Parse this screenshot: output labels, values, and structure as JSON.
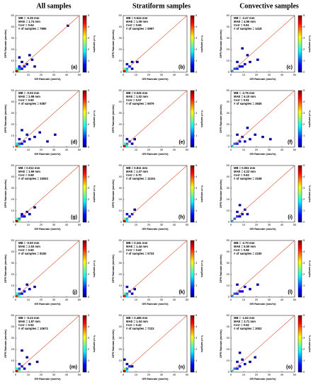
{
  "column_titles": [
    "All samples",
    "Stratiform samples",
    "Convective samples"
  ],
  "axes": {
    "x_label": "GR Rainrate (mm/hr)",
    "y_label": "DPR Rainrate (mm/hr)",
    "colorbar_label": "% of samples",
    "xlim": [
      0,
      50
    ],
    "ylim": [
      0,
      50
    ],
    "xticks": [
      0,
      10,
      20,
      30,
      40,
      50
    ],
    "yticks": [
      0,
      10,
      20,
      30,
      40,
      50
    ],
    "clim": [
      0,
      5
    ],
    "cticks": [
      0,
      1,
      2,
      3,
      4,
      5
    ],
    "bin_width": 2,
    "line_color": "#d9502f"
  },
  "chart_data": [
    {
      "type": "heatmap",
      "label": "(a)",
      "annotations": [
        "MB = -0.35 mm",
        "MAE = 1.74 mm",
        "Corr = 0.64",
        "# of samples = 7865"
      ],
      "cells": [
        [
          0,
          0,
          4.8
        ],
        [
          2,
          0,
          2.5
        ],
        [
          0,
          2,
          2.2
        ],
        [
          2,
          2,
          1.2
        ],
        [
          4,
          2,
          0.6
        ],
        [
          2,
          4,
          0.6
        ],
        [
          6,
          4,
          0.3
        ],
        [
          4,
          8,
          0.2
        ],
        [
          8,
          6,
          0.15
        ],
        [
          12,
          10,
          0.1
        ],
        [
          2,
          12,
          0.1
        ],
        [
          14,
          4,
          0.1
        ],
        [
          10,
          14,
          0.05
        ],
        [
          40,
          40,
          0.05
        ]
      ]
    },
    {
      "type": "heatmap",
      "label": "(b)",
      "annotations": [
        "MB = 0.524 mm",
        "MAE = 1.09 mm",
        "Corr = 0.66",
        "# of samples = 5997"
      ],
      "cells": [
        [
          0,
          0,
          4.5
        ],
        [
          2,
          0,
          2.0
        ],
        [
          0,
          2,
          2.4
        ],
        [
          2,
          2,
          1.5
        ],
        [
          4,
          4,
          0.5
        ],
        [
          2,
          6,
          0.3
        ],
        [
          6,
          2,
          0.2
        ],
        [
          6,
          8,
          0.1
        ],
        [
          10,
          8,
          0.05
        ]
      ]
    },
    {
      "type": "heatmap",
      "label": "(c)",
      "annotations": [
        "MB = -2.47 mm",
        "MAE = 4.96 mm",
        "Corr = 0.61",
        "# of samples = 1418"
      ],
      "cells": [
        [
          0,
          0,
          1.5
        ],
        [
          2,
          2,
          1.0
        ],
        [
          4,
          2,
          0.8
        ],
        [
          6,
          4,
          0.5
        ],
        [
          8,
          4,
          0.4
        ],
        [
          10,
          6,
          0.3
        ],
        [
          4,
          8,
          0.3
        ],
        [
          14,
          8,
          0.2
        ],
        [
          12,
          14,
          0.15
        ],
        [
          20,
          10,
          0.1
        ],
        [
          8,
          20,
          0.1
        ]
      ]
    },
    {
      "type": "heatmap",
      "label": "(d)",
      "annotations": [
        "MB = -0.93 mm",
        "MAE = 2.98 mm",
        "Corr = 0.60",
        "# of samples = 9387"
      ],
      "cells": [
        [
          0,
          0,
          4.0
        ],
        [
          2,
          0,
          2.2
        ],
        [
          0,
          2,
          1.8
        ],
        [
          2,
          2,
          1.0
        ],
        [
          4,
          2,
          0.6
        ],
        [
          6,
          4,
          0.4
        ],
        [
          2,
          6,
          0.3
        ],
        [
          10,
          6,
          0.2
        ],
        [
          8,
          10,
          0.2
        ],
        [
          14,
          8,
          0.1
        ],
        [
          18,
          12,
          0.1
        ],
        [
          4,
          14,
          0.1
        ],
        [
          24,
          4,
          0.05
        ],
        [
          30,
          10,
          0.05
        ]
      ]
    },
    {
      "type": "heatmap",
      "label": "(e)",
      "annotations": [
        "MB = 0.026 mm",
        "MAE = 1.02 mm",
        "Corr = 0.57",
        "# of samples = 6979"
      ],
      "cells": [
        [
          0,
          0,
          4.6
        ],
        [
          2,
          0,
          2.0
        ],
        [
          0,
          2,
          2.2
        ],
        [
          2,
          2,
          1.3
        ],
        [
          4,
          4,
          0.5
        ],
        [
          6,
          2,
          0.2
        ],
        [
          2,
          6,
          0.2
        ],
        [
          8,
          6,
          0.1
        ]
      ]
    },
    {
      "type": "heatmap",
      "label": "(f)",
      "annotations": [
        "MB = -2.76 mm",
        "MAE = 6.10 mm",
        "Corr = 0.51",
        "# of samples = 3845"
      ],
      "cells": [
        [
          0,
          0,
          1.8
        ],
        [
          2,
          2,
          1.1
        ],
        [
          4,
          2,
          0.8
        ],
        [
          6,
          4,
          0.5
        ],
        [
          10,
          4,
          0.4
        ],
        [
          8,
          8,
          0.3
        ],
        [
          14,
          6,
          0.2
        ],
        [
          4,
          10,
          0.2
        ],
        [
          18,
          10,
          0.15
        ],
        [
          24,
          8,
          0.1
        ],
        [
          30,
          6,
          0.05
        ],
        [
          12,
          16,
          0.1
        ]
      ]
    },
    {
      "type": "heatmap",
      "label": "(g)",
      "annotations": [
        "MB = 0.012 mm",
        "MAE = 1.69 mm",
        "Corr = 0.69",
        "# of samples = 15053"
      ],
      "cells": [
        [
          0,
          0,
          4.9
        ],
        [
          2,
          0,
          2.4
        ],
        [
          0,
          2,
          2.3
        ],
        [
          2,
          2,
          1.3
        ],
        [
          4,
          4,
          0.6
        ],
        [
          6,
          4,
          0.3
        ],
        [
          4,
          6,
          0.3
        ],
        [
          8,
          8,
          0.15
        ],
        [
          10,
          6,
          0.1
        ],
        [
          14,
          12,
          0.05
        ]
      ]
    },
    {
      "type": "heatmap",
      "label": "(h)",
      "annotations": [
        "MB = 0.811 mm",
        "MAE = 1.07 mm",
        "Corr = 0.70",
        "# of samples = 11161"
      ],
      "cells": [
        [
          0,
          0,
          4.7
        ],
        [
          2,
          0,
          1.9
        ],
        [
          0,
          2,
          2.5
        ],
        [
          2,
          2,
          1.6
        ],
        [
          4,
          4,
          0.5
        ],
        [
          2,
          6,
          0.3
        ],
        [
          6,
          6,
          0.2
        ],
        [
          8,
          10,
          0.05
        ]
      ]
    },
    {
      "type": "heatmap",
      "label": "(i)",
      "annotations": [
        "MB = 0.061 mm",
        "MAE = 4.22 mm",
        "Corr = 0.63",
        "# of samples = 3168"
      ],
      "cells": [
        [
          0,
          0,
          1.6
        ],
        [
          2,
          2,
          1.1
        ],
        [
          4,
          4,
          0.7
        ],
        [
          6,
          4,
          0.4
        ],
        [
          4,
          8,
          0.3
        ],
        [
          8,
          6,
          0.3
        ],
        [
          10,
          10,
          0.2
        ],
        [
          12,
          6,
          0.1
        ],
        [
          6,
          14,
          0.1
        ]
      ]
    },
    {
      "type": "heatmap",
      "label": "(j)",
      "annotations": [
        "MB = -0.50 mm",
        "MAE = 2.53 mm",
        "Corr = 0.60",
        "# of samples = 8150"
      ],
      "cells": [
        [
          0,
          0,
          4.2
        ],
        [
          2,
          0,
          2.1
        ],
        [
          0,
          2,
          2.0
        ],
        [
          2,
          2,
          1.1
        ],
        [
          4,
          2,
          0.6
        ],
        [
          6,
          4,
          0.4
        ],
        [
          2,
          6,
          0.3
        ],
        [
          10,
          6,
          0.2
        ],
        [
          8,
          10,
          0.1
        ],
        [
          14,
          8,
          0.1
        ]
      ]
    },
    {
      "type": "heatmap",
      "label": "(k)",
      "annotations": [
        "MB = 0.341 mm",
        "MAE = 1.44 mm",
        "Corr = 0.63",
        "# of samples = 5733"
      ],
      "cells": [
        [
          0,
          0,
          4.4
        ],
        [
          2,
          0,
          1.8
        ],
        [
          0,
          2,
          2.2
        ],
        [
          2,
          2,
          1.4
        ],
        [
          4,
          4,
          0.5
        ],
        [
          6,
          2,
          0.3
        ],
        [
          2,
          8,
          0.2
        ],
        [
          8,
          6,
          0.1
        ]
      ]
    },
    {
      "type": "heatmap",
      "label": "(l)",
      "annotations": [
        "MB = -2.70 mm",
        "MAE = 5.50 mm",
        "Corr = 0.56",
        "# of samples = 2230"
      ],
      "cells": [
        [
          0,
          0,
          1.4
        ],
        [
          2,
          2,
          1.0
        ],
        [
          4,
          2,
          0.8
        ],
        [
          6,
          4,
          0.5
        ],
        [
          8,
          4,
          0.4
        ],
        [
          10,
          8,
          0.3
        ],
        [
          14,
          6,
          0.2
        ],
        [
          4,
          10,
          0.15
        ],
        [
          20,
          10,
          0.1
        ]
      ]
    },
    {
      "type": "heatmap",
      "label": "(m)",
      "annotations": [
        "MB = -0.24 mm",
        "MAE = 1.87 mm",
        "Corr = 0.52",
        "# of samples = 10672"
      ],
      "cells": [
        [
          0,
          0,
          4.6
        ],
        [
          2,
          0,
          2.3
        ],
        [
          0,
          2,
          2.1
        ],
        [
          2,
          2,
          1.1
        ],
        [
          4,
          4,
          0.5
        ],
        [
          6,
          2,
          0.3
        ],
        [
          2,
          6,
          0.3
        ],
        [
          10,
          6,
          0.1
        ],
        [
          8,
          12,
          0.1
        ],
        [
          16,
          8,
          0.05
        ],
        [
          4,
          18,
          0.05
        ]
      ]
    },
    {
      "type": "heatmap",
      "label": "(n)",
      "annotations": [
        "MB = 0.485 mm",
        "MAE = 1.04 mm",
        "Corr = 0.42",
        "# of samples = 7223"
      ],
      "cells": [
        [
          0,
          0,
          4.8
        ],
        [
          2,
          0,
          1.9
        ],
        [
          0,
          2,
          2.6
        ],
        [
          2,
          2,
          1.2
        ],
        [
          4,
          4,
          0.4
        ],
        [
          2,
          6,
          0.2
        ],
        [
          6,
          4,
          0.1
        ],
        [
          0,
          10,
          0.05
        ]
      ]
    },
    {
      "type": "heatmap",
      "label": "(o)",
      "annotations": [
        "MB = -1.82 mm",
        "MAE = 3.71 mm",
        "Corr = 0.52",
        "# of samples = 3002"
      ],
      "cells": [
        [
          0,
          0,
          1.8
        ],
        [
          2,
          2,
          1.2
        ],
        [
          4,
          2,
          0.8
        ],
        [
          6,
          4,
          0.5
        ],
        [
          4,
          8,
          0.3
        ],
        [
          10,
          6,
          0.3
        ],
        [
          8,
          10,
          0.2
        ],
        [
          14,
          8,
          0.1
        ],
        [
          18,
          12,
          0.1
        ],
        [
          6,
          16,
          0.05
        ]
      ]
    }
  ]
}
